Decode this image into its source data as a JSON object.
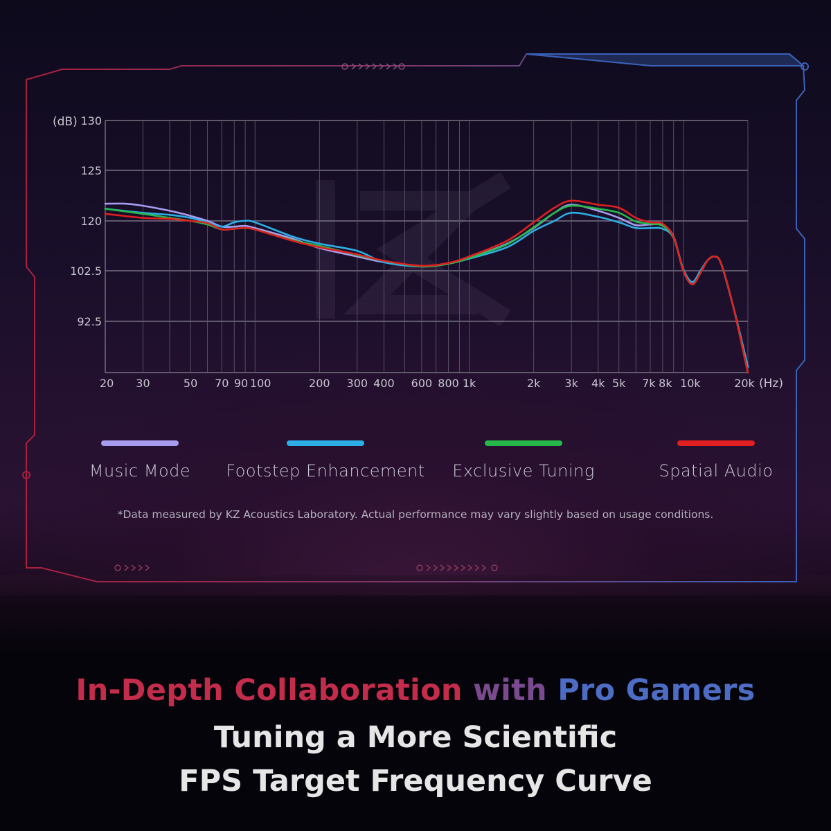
{
  "chart_data": {
    "type": "line",
    "ylabel": "(dB)",
    "xlabel": "(Hz)",
    "y_ticks": [
      {
        "label": "130"
      },
      {
        "label": "125"
      },
      {
        "label": "120"
      },
      {
        "label": "102.5"
      },
      {
        "label": "92.5"
      }
    ],
    "x_ticks": [
      "20",
      "30",
      "50",
      "70",
      "90",
      "100",
      "200",
      "300",
      "400",
      "600",
      "800",
      "1k",
      "2k",
      "3k",
      "4k",
      "5k",
      "7k",
      "8k",
      "10k",
      "20k"
    ],
    "x_scale": "log",
    "grid": true,
    "series": [
      {
        "name": "Music Mode",
        "color": "#a79cf0",
        "points": [
          [
            20,
            121.7
          ],
          [
            25,
            121.7
          ],
          [
            30,
            121.5
          ],
          [
            40,
            121
          ],
          [
            50,
            120.5
          ],
          [
            60,
            120
          ],
          [
            70,
            119.2
          ],
          [
            80,
            119.2
          ],
          [
            90,
            119.3
          ],
          [
            100,
            119
          ],
          [
            150,
            117.5
          ],
          [
            200,
            116.2
          ],
          [
            300,
            115
          ],
          [
            400,
            114.2
          ],
          [
            600,
            113.6
          ],
          [
            800,
            114
          ],
          [
            1000,
            114.8
          ],
          [
            1500,
            116.8
          ],
          [
            2000,
            119
          ],
          [
            2500,
            120.8
          ],
          [
            3000,
            121.6
          ],
          [
            4000,
            121
          ],
          [
            5000,
            120.3
          ],
          [
            6000,
            119.4
          ],
          [
            7000,
            119.5
          ],
          [
            8000,
            119.4
          ],
          [
            9000,
            117.8
          ],
          [
            10000,
            113
          ],
          [
            11000,
            111.8
          ],
          [
            12000,
            112.8
          ],
          [
            13000,
            114.5
          ],
          [
            14000,
            115
          ],
          [
            15000,
            114
          ],
          [
            17000,
            110
          ],
          [
            20000,
            104.5
          ]
        ]
      },
      {
        "name": "Footstep Enhancement",
        "color": "#2eaee6",
        "points": [
          [
            20,
            121.2
          ],
          [
            30,
            120.8
          ],
          [
            40,
            120.6
          ],
          [
            50,
            120.3
          ],
          [
            60,
            119.8
          ],
          [
            70,
            119.2
          ],
          [
            80,
            119.8
          ],
          [
            90,
            120
          ],
          [
            100,
            119.8
          ],
          [
            150,
            117.8
          ],
          [
            200,
            116.8
          ],
          [
            300,
            115.8
          ],
          [
            400,
            114.2
          ],
          [
            600,
            113.6
          ],
          [
            800,
            114
          ],
          [
            1000,
            114.7
          ],
          [
            1500,
            116.3
          ],
          [
            2000,
            118.6
          ],
          [
            2500,
            120
          ],
          [
            3000,
            120.8
          ],
          [
            4000,
            120.4
          ],
          [
            5000,
            119.8
          ],
          [
            6000,
            119
          ],
          [
            7000,
            119
          ],
          [
            8000,
            118.9
          ],
          [
            9000,
            117.6
          ],
          [
            10000,
            113.2
          ],
          [
            11000,
            112
          ],
          [
            12000,
            113
          ],
          [
            13000,
            114.5
          ],
          [
            14000,
            115
          ],
          [
            15000,
            114
          ],
          [
            17000,
            110
          ],
          [
            20000,
            104.5
          ]
        ]
      },
      {
        "name": "Exclusive Tuning",
        "color": "#27b84a",
        "points": [
          [
            20,
            121.2
          ],
          [
            30,
            120.7
          ],
          [
            40,
            120.3
          ],
          [
            50,
            120
          ],
          [
            60,
            119.5
          ],
          [
            70,
            118.8
          ],
          [
            80,
            118.9
          ],
          [
            90,
            119
          ],
          [
            100,
            118.8
          ],
          [
            150,
            117.3
          ],
          [
            200,
            116.5
          ],
          [
            300,
            115.2
          ],
          [
            400,
            114.4
          ],
          [
            600,
            113.6
          ],
          [
            800,
            114
          ],
          [
            1000,
            114.8
          ],
          [
            1500,
            116.7
          ],
          [
            2000,
            119.1
          ],
          [
            2500,
            120.8
          ],
          [
            3000,
            121.5
          ],
          [
            4000,
            121.2
          ],
          [
            5000,
            120.8
          ],
          [
            6000,
            119.9
          ],
          [
            7000,
            119.6
          ],
          [
            8000,
            119.3
          ],
          [
            9000,
            117.6
          ],
          [
            10000,
            113
          ],
          [
            11000,
            111.8
          ],
          [
            12000,
            112.8
          ],
          [
            13000,
            114.5
          ],
          [
            14000,
            115
          ],
          [
            15000,
            114
          ],
          [
            17000,
            110
          ],
          [
            20000,
            104
          ]
        ]
      },
      {
        "name": "Spatial Audio",
        "color": "#e02020",
        "points": [
          [
            20,
            120.7
          ],
          [
            30,
            120.3
          ],
          [
            40,
            120.2
          ],
          [
            50,
            120
          ],
          [
            60,
            119.7
          ],
          [
            70,
            118.8
          ],
          [
            80,
            118.9
          ],
          [
            90,
            119
          ],
          [
            100,
            118.8
          ],
          [
            150,
            117.2
          ],
          [
            200,
            116.3
          ],
          [
            300,
            115.3
          ],
          [
            400,
            114.4
          ],
          [
            600,
            113.7
          ],
          [
            800,
            114.1
          ],
          [
            1000,
            115
          ],
          [
            1500,
            117.2
          ],
          [
            2000,
            119.8
          ],
          [
            2500,
            121.3
          ],
          [
            3000,
            122
          ],
          [
            4000,
            121.6
          ],
          [
            5000,
            121.3
          ],
          [
            6000,
            120.3
          ],
          [
            7000,
            119.8
          ],
          [
            8000,
            119.6
          ],
          [
            9000,
            117.7
          ],
          [
            10000,
            113
          ],
          [
            11000,
            111.8
          ],
          [
            12000,
            112.8
          ],
          [
            13000,
            114.5
          ],
          [
            14000,
            115
          ],
          [
            15000,
            114
          ],
          [
            17000,
            110
          ],
          [
            20000,
            104
          ]
        ]
      }
    ]
  },
  "legend": [
    {
      "label": "Music Mode",
      "color": "#a79cf0"
    },
    {
      "label": "Footstep Enhancement",
      "color": "#2eaee6"
    },
    {
      "label": "Exclusive Tuning",
      "color": "#27b84a"
    },
    {
      "label": "Spatial Audio",
      "color": "#e02020"
    }
  ],
  "note": "*Data measured by KZ Acoustics Laboratory. Actual performance may vary slightly based on usage conditions.",
  "headline": {
    "part1": "In-Depth Collaboration",
    "part2": "with",
    "part3": "Pro Gamers"
  },
  "subtitle_line1": "Tuning a More Scientific",
  "subtitle_line2": "FPS Target Frequency Curve"
}
